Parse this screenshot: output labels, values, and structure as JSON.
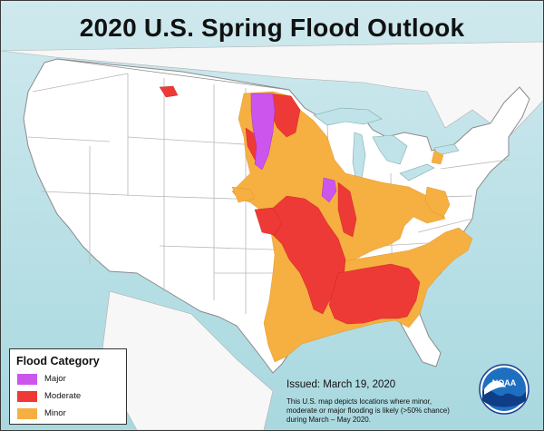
{
  "title": "2020 U.S. Spring Flood Outlook",
  "legend": {
    "title": "Flood Category",
    "items": [
      {
        "label": "Major",
        "color": "#cc55ee"
      },
      {
        "label": "Moderate",
        "color": "#ee3a36"
      },
      {
        "label": "Minor",
        "color": "#f5b041"
      }
    ]
  },
  "issued": "Issued:  March 19, 2020",
  "note": "This U.S. map depicts locations where minor, moderate or major flooding is likely (>50% chance) during March – May 2020.",
  "logo": {
    "text": "NOAA",
    "icon": "noaa-logo-icon"
  },
  "colors": {
    "land": "#ffffff",
    "water": "#bfe3e8",
    "border": "#9a9a9a"
  }
}
